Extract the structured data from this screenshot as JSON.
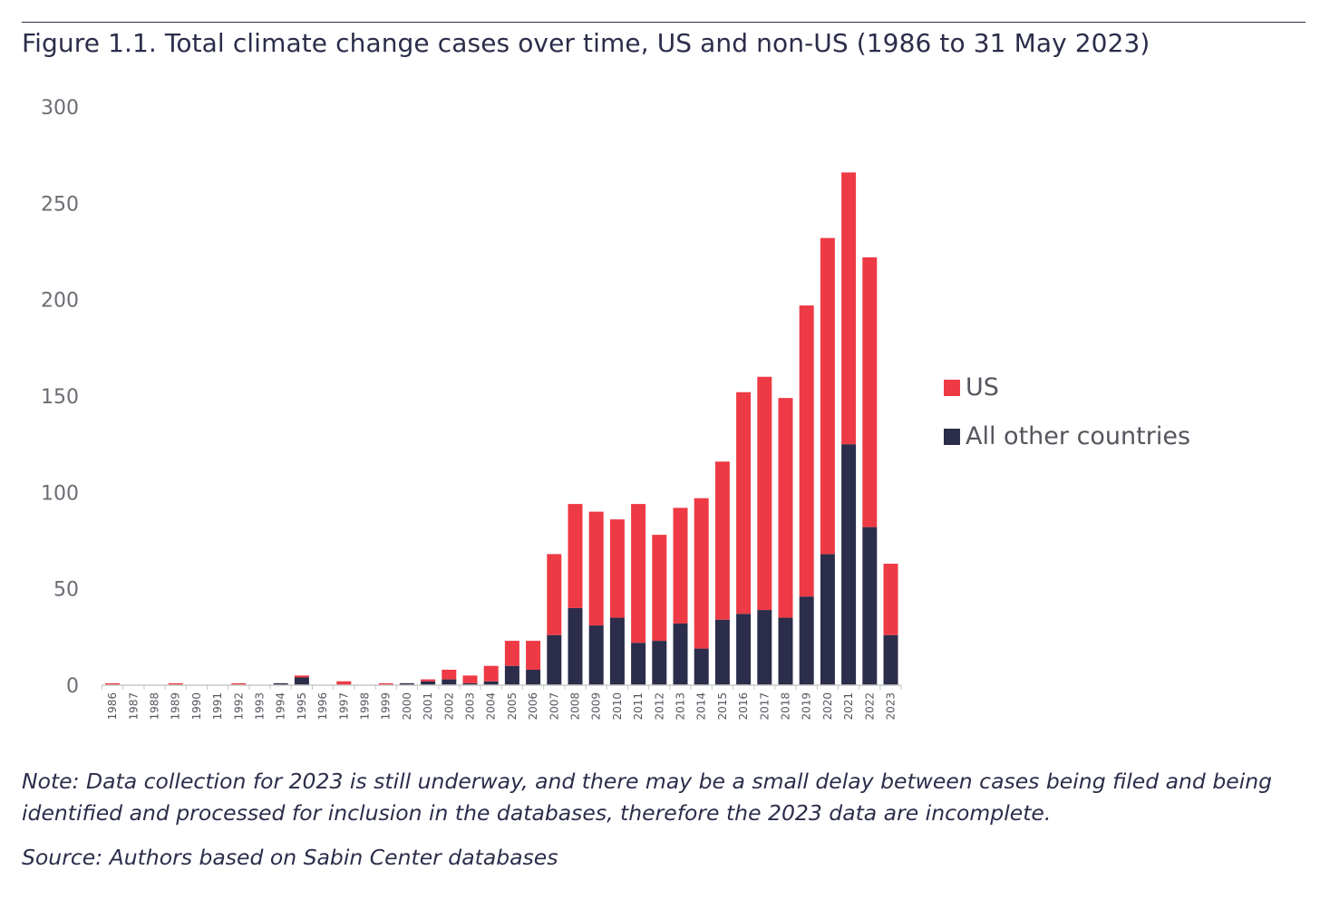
{
  "figure": {
    "title": "Figure 1.1. Total climate change cases over time, US and non-US (1986 to 31 May 2023)",
    "note": "Note: Data collection for 2023 is still underway, and there may be a small delay between cases being filed and being identified and processed for inclusion in the databases, therefore the 2023 data are incomplete.",
    "source": "Source: Authors based on Sabin Center databases"
  },
  "colors": {
    "us": "#ee3a45",
    "other": "#2b2d4a",
    "axis": "#c8c8c8"
  },
  "chart_data": {
    "type": "bar",
    "stacked": true,
    "title": "Figure 1.1. Total climate change cases over time, US and non-US (1986 to 31 May 2023)",
    "xlabel": "",
    "ylabel": "",
    "ylim": [
      0,
      300
    ],
    "yticks": [
      0,
      50,
      100,
      150,
      200,
      250,
      300
    ],
    "grid": false,
    "legend_position": "right",
    "categories": [
      "1986",
      "1987",
      "1988",
      "1989",
      "1990",
      "1991",
      "1992",
      "1993",
      "1994",
      "1995",
      "1996",
      "1997",
      "1998",
      "1999",
      "2000",
      "2001",
      "2002",
      "2003",
      "2004",
      "2005",
      "2006",
      "2007",
      "2008",
      "2009",
      "2010",
      "2011",
      "2012",
      "2013",
      "2014",
      "2015",
      "2016",
      "2017",
      "2018",
      "2019",
      "2020",
      "2021",
      "2022",
      "2023"
    ],
    "series": [
      {
        "name": "All other countries",
        "color": "#2b2d4a",
        "values": [
          0,
          0,
          0,
          0,
          0,
          0,
          0,
          0,
          1,
          4,
          0,
          0,
          0,
          0,
          1,
          2,
          3,
          1,
          2,
          10,
          8,
          26,
          40,
          31,
          35,
          22,
          23,
          32,
          19,
          34,
          37,
          39,
          35,
          46,
          68,
          125,
          82,
          26
        ]
      },
      {
        "name": "US",
        "color": "#ee3a45",
        "values": [
          1,
          0,
          0,
          1,
          0,
          0,
          1,
          0,
          0,
          1,
          0,
          2,
          0,
          1,
          0,
          1,
          5,
          4,
          8,
          13,
          15,
          42,
          54,
          59,
          51,
          72,
          55,
          60,
          78,
          82,
          115,
          121,
          114,
          151,
          164,
          141,
          140,
          37
        ]
      }
    ]
  }
}
